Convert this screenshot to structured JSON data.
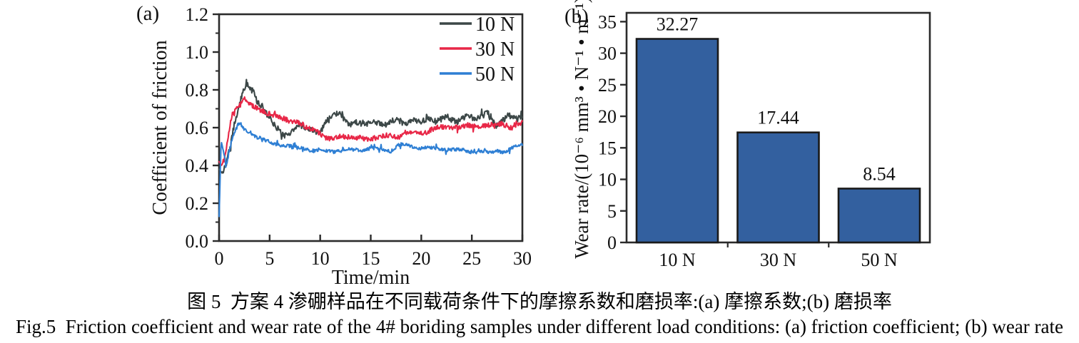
{
  "figure": {
    "panel_a_label": "(a)",
    "panel_b_label": "(b)",
    "caption_zh": "图 5  方案 4 渗硼样品在不同载荷条件下的摩擦系数和磨损率:(a) 摩擦系数;(b) 磨损率",
    "caption_en": "Fig.5  Friction coefficient and wear rate of the 4# boriding samples under different load conditions: (a) friction coefficient; (b) wear rate"
  },
  "chart_data": [
    {
      "id": "friction_coefficient",
      "type": "line",
      "title": "",
      "xlabel": "Time/min",
      "ylabel": "Coefficient of friction",
      "xlim": [
        0,
        30
      ],
      "ylim": [
        0.0,
        1.2
      ],
      "x_ticks": [
        "0",
        "5",
        "10",
        "15",
        "20",
        "25",
        "30"
      ],
      "y_ticks": [
        "0.0",
        "0.2",
        "0.4",
        "0.6",
        "0.8",
        "1.0",
        "1.2"
      ],
      "y_minor_step": 0.1,
      "grid": false,
      "legend_position": "top-right-inside",
      "axis_color": "#2b2b2b",
      "series": [
        {
          "name": "10 N",
          "color": "#3c4747",
          "noise_amplitude": 0.015,
          "keypoints": [
            [
              0,
              0.38
            ],
            [
              0.3,
              0.36
            ],
            [
              0.7,
              0.4
            ],
            [
              1.1,
              0.5
            ],
            [
              1.5,
              0.62
            ],
            [
              1.9,
              0.7
            ],
            [
              2.3,
              0.78
            ],
            [
              2.7,
              0.84
            ],
            [
              3.0,
              0.8
            ],
            [
              3.3,
              0.79
            ],
            [
              3.7,
              0.74
            ],
            [
              4.1,
              0.72
            ],
            [
              4.5,
              0.69
            ],
            [
              5.0,
              0.66
            ],
            [
              5.5,
              0.61
            ],
            [
              6.0,
              0.575
            ],
            [
              6.5,
              0.555
            ],
            [
              7.0,
              0.575
            ],
            [
              7.5,
              0.6
            ],
            [
              8.0,
              0.615
            ],
            [
              8.5,
              0.6
            ],
            [
              9.0,
              0.585
            ],
            [
              9.5,
              0.575
            ],
            [
              10.0,
              0.585
            ],
            [
              10.5,
              0.625
            ],
            [
              11.0,
              0.66
            ],
            [
              11.5,
              0.675
            ],
            [
              12.0,
              0.665
            ],
            [
              12.5,
              0.64
            ],
            [
              13.0,
              0.62
            ],
            [
              13.5,
              0.63
            ],
            [
              14.0,
              0.625
            ],
            [
              14.5,
              0.615
            ],
            [
              15.0,
              0.62
            ],
            [
              15.5,
              0.635
            ],
            [
              16.0,
              0.625
            ],
            [
              16.5,
              0.615
            ],
            [
              17.0,
              0.625
            ],
            [
              17.5,
              0.645
            ],
            [
              18.0,
              0.635
            ],
            [
              18.5,
              0.62
            ],
            [
              19.0,
              0.64
            ],
            [
              19.5,
              0.63
            ],
            [
              20.0,
              0.625
            ],
            [
              20.5,
              0.645
            ],
            [
              21.0,
              0.65
            ],
            [
              21.5,
              0.635
            ],
            [
              22.0,
              0.645
            ],
            [
              22.5,
              0.66
            ],
            [
              23.0,
              0.64
            ],
            [
              23.5,
              0.63
            ],
            [
              24.0,
              0.65
            ],
            [
              24.5,
              0.67
            ],
            [
              25.0,
              0.65
            ],
            [
              25.5,
              0.64
            ],
            [
              26.0,
              0.66
            ],
            [
              26.5,
              0.685
            ],
            [
              27.0,
              0.66
            ],
            [
              27.5,
              0.6
            ],
            [
              28.0,
              0.63
            ],
            [
              28.5,
              0.66
            ],
            [
              29.0,
              0.67
            ],
            [
              29.5,
              0.65
            ],
            [
              30,
              0.67
            ]
          ]
        },
        {
          "name": "30 N",
          "color": "#e82747",
          "noise_amplitude": 0.013,
          "keypoints": [
            [
              0,
              0.42
            ],
            [
              0.25,
              0.4
            ],
            [
              0.5,
              0.43
            ],
            [
              0.8,
              0.52
            ],
            [
              1.1,
              0.63
            ],
            [
              1.4,
              0.69
            ],
            [
              1.7,
              0.705
            ],
            [
              2.0,
              0.715
            ],
            [
              2.4,
              0.755
            ],
            [
              2.7,
              0.745
            ],
            [
              3.1,
              0.72
            ],
            [
              3.5,
              0.71
            ],
            [
              4.0,
              0.7
            ],
            [
              4.5,
              0.685
            ],
            [
              5.0,
              0.67
            ],
            [
              5.5,
              0.66
            ],
            [
              6.0,
              0.655
            ],
            [
              6.5,
              0.65
            ],
            [
              7.0,
              0.64
            ],
            [
              7.5,
              0.63
            ],
            [
              8.0,
              0.62
            ],
            [
              8.5,
              0.605
            ],
            [
              9.0,
              0.595
            ],
            [
              9.5,
              0.59
            ],
            [
              10.0,
              0.57
            ],
            [
              10.5,
              0.54
            ],
            [
              11.0,
              0.535
            ],
            [
              11.5,
              0.55
            ],
            [
              12.0,
              0.56
            ],
            [
              12.5,
              0.555
            ],
            [
              13.0,
              0.55
            ],
            [
              13.5,
              0.545
            ],
            [
              14.0,
              0.55
            ],
            [
              14.5,
              0.54
            ],
            [
              15.0,
              0.545
            ],
            [
              15.5,
              0.55
            ],
            [
              16.0,
              0.55
            ],
            [
              16.5,
              0.555
            ],
            [
              17.0,
              0.56
            ],
            [
              17.5,
              0.555
            ],
            [
              18.0,
              0.56
            ],
            [
              18.5,
              0.57
            ],
            [
              19.0,
              0.565
            ],
            [
              19.5,
              0.57
            ],
            [
              20.0,
              0.575
            ],
            [
              20.5,
              0.58
            ],
            [
              21.0,
              0.59
            ],
            [
              21.5,
              0.595
            ],
            [
              22.0,
              0.6
            ],
            [
              23.0,
              0.605
            ],
            [
              24.0,
              0.605
            ],
            [
              25.0,
              0.61
            ],
            [
              26.0,
              0.61
            ],
            [
              26.5,
              0.615
            ],
            [
              27.0,
              0.61
            ],
            [
              27.5,
              0.615
            ],
            [
              28.0,
              0.62
            ],
            [
              28.5,
              0.615
            ],
            [
              29.0,
              0.6
            ],
            [
              29.5,
              0.62
            ],
            [
              30,
              0.62
            ]
          ]
        },
        {
          "name": "50 N",
          "color": "#2e7fd4",
          "noise_amplitude": 0.009,
          "keypoints": [
            [
              0,
              0.13
            ],
            [
              0.2,
              0.53
            ],
            [
              0.45,
              0.47
            ],
            [
              0.7,
              0.41
            ],
            [
              0.9,
              0.44
            ],
            [
              1.2,
              0.52
            ],
            [
              1.5,
              0.57
            ],
            [
              1.8,
              0.61
            ],
            [
              2.1,
              0.62
            ],
            [
              2.4,
              0.595
            ],
            [
              2.7,
              0.58
            ],
            [
              3.0,
              0.585
            ],
            [
              3.3,
              0.57
            ],
            [
              3.6,
              0.555
            ],
            [
              4.0,
              0.545
            ],
            [
              4.5,
              0.53
            ],
            [
              5.0,
              0.52
            ],
            [
              5.5,
              0.515
            ],
            [
              6.0,
              0.51
            ],
            [
              6.5,
              0.505
            ],
            [
              7.0,
              0.5
            ],
            [
              7.5,
              0.5
            ],
            [
              8.0,
              0.495
            ],
            [
              8.5,
              0.49
            ],
            [
              9.0,
              0.485
            ],
            [
              9.5,
              0.48
            ],
            [
              10.0,
              0.48
            ],
            [
              11,
              0.475
            ],
            [
              12,
              0.48
            ],
            [
              13,
              0.48
            ],
            [
              14,
              0.485
            ],
            [
              15,
              0.49
            ],
            [
              16,
              0.485
            ],
            [
              17,
              0.48
            ],
            [
              17.5,
              0.5
            ],
            [
              18,
              0.51
            ],
            [
              18.5,
              0.505
            ],
            [
              19,
              0.5
            ],
            [
              20,
              0.495
            ],
            [
              21,
              0.49
            ],
            [
              22,
              0.49
            ],
            [
              23,
              0.485
            ],
            [
              24,
              0.48
            ],
            [
              25,
              0.475
            ],
            [
              26,
              0.47
            ],
            [
              27,
              0.465
            ],
            [
              27.5,
              0.48
            ],
            [
              28,
              0.475
            ],
            [
              28.5,
              0.48
            ],
            [
              29,
              0.49
            ],
            [
              29.5,
              0.5
            ],
            [
              30,
              0.51
            ]
          ]
        }
      ]
    },
    {
      "id": "wear_rate",
      "type": "bar",
      "title": "",
      "xlabel": "",
      "ylabel": "Wear rate/(10⁻⁶ mm³ • N⁻¹ • m⁻¹)",
      "categories": [
        "10 N",
        "30 N",
        "50 N"
      ],
      "values": [
        32.27,
        17.44,
        8.54
      ],
      "value_labels": [
        "32.27",
        "17.44",
        "8.54"
      ],
      "ylim": [
        0,
        36.4
      ],
      "y_ticks": [
        "0",
        "5",
        "10",
        "15",
        "20",
        "25",
        "30",
        "35"
      ],
      "grid": false,
      "bar_color": "#33609f",
      "bar_edge_color": "#1a1a1a",
      "axis_color": "#2b2b2b"
    }
  ]
}
